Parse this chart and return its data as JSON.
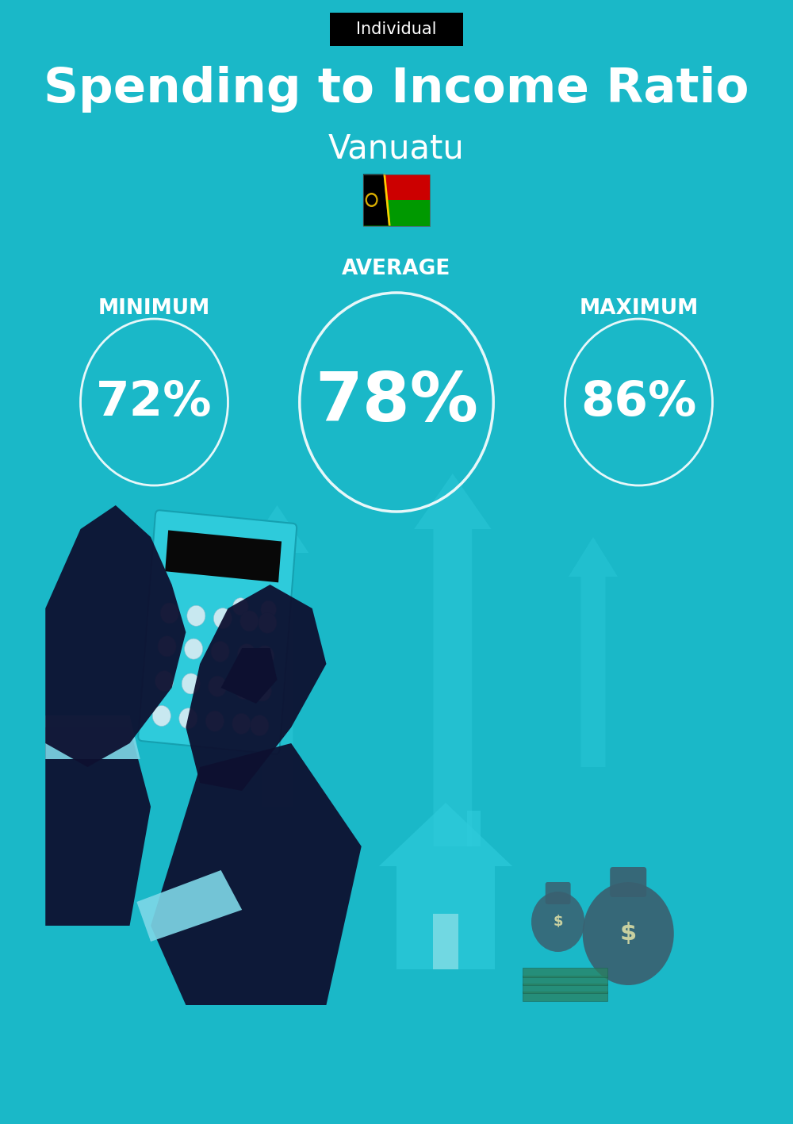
{
  "title": "Spending to Income Ratio",
  "subtitle": "Vanuatu",
  "tag_label": "Individual",
  "tag_bg": "#000000",
  "tag_text_color": "#ffffff",
  "bg_color": "#1ab8c8",
  "text_color": "#ffffff",
  "min_label": "MINIMUM",
  "avg_label": "AVERAGE",
  "max_label": "MAXIMUM",
  "min_value": "72%",
  "avg_value": "78%",
  "max_value": "86%",
  "title_fontsize": 44,
  "subtitle_fontsize": 30,
  "tag_fontsize": 15,
  "label_fontsize": 19,
  "min_fontsize": 44,
  "avg_fontsize": 62,
  "max_fontsize": 44,
  "fig_width": 10.0,
  "fig_height": 14.17,
  "arrow_color": "#2ecbdb",
  "house_color": "#2ecbdb",
  "calc_color": "#2ecbdb",
  "hand_color": "#0d1030",
  "cuff_color": "#7fd8e8",
  "money_color": "#2a8a99",
  "btn_color": "#c8e8f0"
}
